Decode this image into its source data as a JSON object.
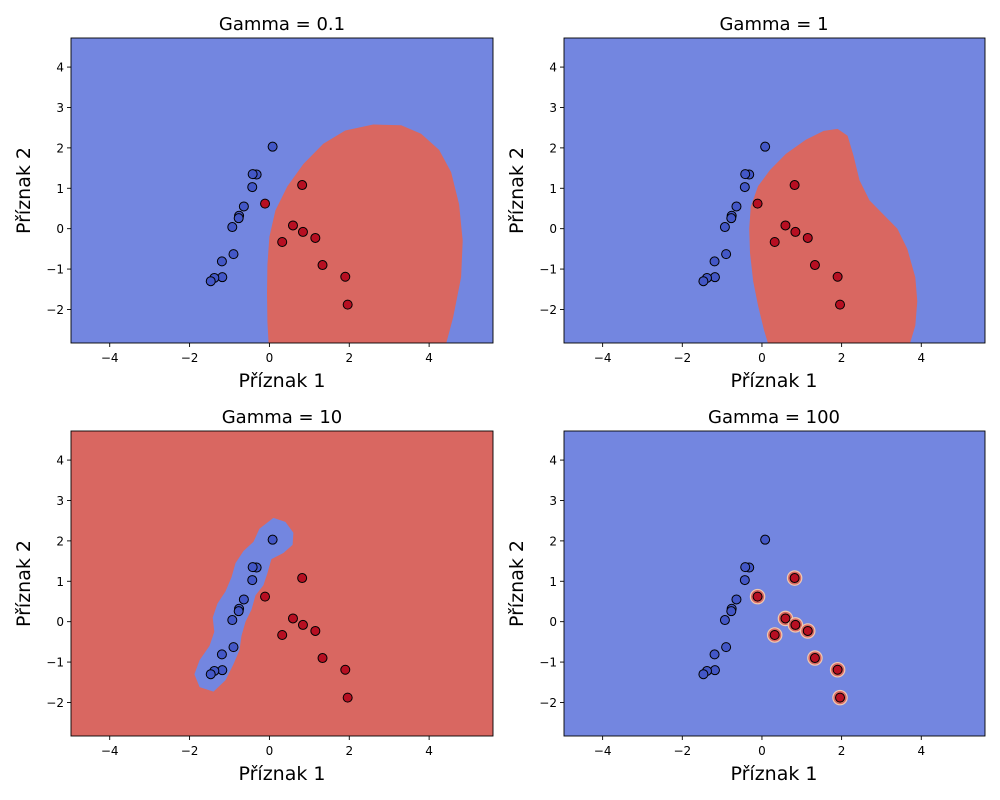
{
  "colors": {
    "class0_region": "#7386e0",
    "class1_region": "#d96761",
    "class0_point": "#4357c7",
    "class1_point": "#b70f22",
    "marker_edge": "#000000"
  },
  "chart_data": [
    {
      "type": "scatter",
      "title": "Gamma = 0.1",
      "xlabel": "Příznak 1",
      "ylabel": "Příznak 2",
      "xlim": [
        -4.97,
        5.6
      ],
      "ylim": [
        -2.83,
        4.72
      ],
      "xticks": [
        -4,
        -2,
        0,
        2,
        4
      ],
      "yticks": [
        -2,
        -1,
        0,
        1,
        2,
        3,
        4
      ],
      "xtick_labels": [
        "−4",
        "−2",
        "0",
        "2",
        "4"
      ],
      "ytick_labels": [
        "−2",
        "−1",
        "0",
        "1",
        "2",
        "3",
        "4"
      ],
      "gamma": 0.1,
      "background": "class0",
      "regions": [
        {
          "class": "class1",
          "path": [
            [
              -0.02,
              -2.83
            ],
            [
              -0.05,
              -2.3
            ],
            [
              -0.06,
              -1.6
            ],
            [
              -0.05,
              -0.9
            ],
            [
              0.0,
              -0.2
            ],
            [
              0.15,
              0.45
            ],
            [
              0.45,
              1.05
            ],
            [
              0.85,
              1.6
            ],
            [
              1.35,
              2.1
            ],
            [
              1.9,
              2.43
            ],
            [
              2.6,
              2.58
            ],
            [
              3.3,
              2.56
            ],
            [
              3.8,
              2.35
            ],
            [
              4.25,
              1.95
            ],
            [
              4.55,
              1.4
            ],
            [
              4.75,
              0.6
            ],
            [
              4.84,
              -0.3
            ],
            [
              4.8,
              -1.2
            ],
            [
              4.6,
              -2.2
            ],
            [
              4.43,
              -2.83
            ]
          ]
        }
      ],
      "series": [
        {
          "class": "class0",
          "points": [
            [
              0.08,
              2.03
            ],
            [
              -0.32,
              1.34
            ],
            [
              -0.42,
              1.35
            ],
            [
              -0.43,
              1.03
            ],
            [
              -0.64,
              0.55
            ],
            [
              -0.76,
              0.32
            ],
            [
              -0.77,
              0.26
            ],
            [
              -0.93,
              0.04
            ],
            [
              -0.9,
              -0.63
            ],
            [
              -1.19,
              -0.81
            ],
            [
              -1.18,
              -1.2
            ],
            [
              -1.38,
              -1.22
            ],
            [
              -1.47,
              -1.3
            ]
          ]
        },
        {
          "class": "class1",
          "points": [
            [
              0.82,
              1.08
            ],
            [
              -0.11,
              0.62
            ],
            [
              0.59,
              0.08
            ],
            [
              0.84,
              -0.08
            ],
            [
              1.15,
              -0.23
            ],
            [
              0.32,
              -0.33
            ],
            [
              1.33,
              -0.9
            ],
            [
              1.9,
              -1.19
            ],
            [
              1.96,
              -1.88
            ]
          ]
        }
      ]
    },
    {
      "type": "scatter",
      "title": "Gamma = 1",
      "xlabel": "Příznak 1",
      "ylabel": "Příznak 2",
      "xlim": [
        -4.97,
        5.6
      ],
      "ylim": [
        -2.83,
        4.72
      ],
      "xticks": [
        -4,
        -2,
        0,
        2,
        4
      ],
      "yticks": [
        -2,
        -1,
        0,
        1,
        2,
        3,
        4
      ],
      "xtick_labels": [
        "−4",
        "−2",
        "0",
        "2",
        "4"
      ],
      "ytick_labels": [
        "−2",
        "−1",
        "0",
        "1",
        "2",
        "3",
        "4"
      ],
      "gamma": 1,
      "background": "class0",
      "regions": [
        {
          "class": "class1",
          "path": [
            [
              0.15,
              -2.83
            ],
            [
              0.05,
              -2.5
            ],
            [
              -0.1,
              -1.9
            ],
            [
              -0.22,
              -1.3
            ],
            [
              -0.3,
              -0.6
            ],
            [
              -0.32,
              0.0
            ],
            [
              -0.28,
              0.55
            ],
            [
              -0.1,
              1.05
            ],
            [
              0.2,
              1.45
            ],
            [
              0.6,
              1.85
            ],
            [
              1.1,
              2.2
            ],
            [
              1.55,
              2.42
            ],
            [
              1.9,
              2.47
            ],
            [
              2.15,
              2.3
            ],
            [
              2.3,
              1.8
            ],
            [
              2.45,
              1.2
            ],
            [
              2.7,
              0.7
            ],
            [
              3.05,
              0.35
            ],
            [
              3.4,
              0.0
            ],
            [
              3.65,
              -0.5
            ],
            [
              3.85,
              -1.2
            ],
            [
              3.9,
              -1.8
            ],
            [
              3.85,
              -2.4
            ],
            [
              3.72,
              -2.83
            ]
          ]
        }
      ],
      "series": [
        {
          "class": "class0",
          "points": [
            [
              0.08,
              2.03
            ],
            [
              -0.32,
              1.34
            ],
            [
              -0.42,
              1.35
            ],
            [
              -0.43,
              1.03
            ],
            [
              -0.64,
              0.55
            ],
            [
              -0.76,
              0.32
            ],
            [
              -0.77,
              0.26
            ],
            [
              -0.93,
              0.04
            ],
            [
              -0.9,
              -0.63
            ],
            [
              -1.19,
              -0.81
            ],
            [
              -1.18,
              -1.2
            ],
            [
              -1.38,
              -1.22
            ],
            [
              -1.47,
              -1.3
            ]
          ]
        },
        {
          "class": "class1",
          "points": [
            [
              0.82,
              1.08
            ],
            [
              -0.11,
              0.62
            ],
            [
              0.59,
              0.08
            ],
            [
              0.84,
              -0.08
            ],
            [
              1.15,
              -0.23
            ],
            [
              0.32,
              -0.33
            ],
            [
              1.33,
              -0.9
            ],
            [
              1.9,
              -1.19
            ],
            [
              1.96,
              -1.88
            ]
          ]
        }
      ]
    },
    {
      "type": "scatter",
      "title": "Gamma = 10",
      "xlabel": "Příznak 1",
      "ylabel": "Příznak 2",
      "xlim": [
        -4.97,
        5.6
      ],
      "ylim": [
        -2.83,
        4.72
      ],
      "xticks": [
        -4,
        -2,
        0,
        2,
        4
      ],
      "yticks": [
        -2,
        -1,
        0,
        1,
        2,
        3,
        4
      ],
      "xtick_labels": [
        "−4",
        "−2",
        "0",
        "2",
        "4"
      ],
      "ytick_labels": [
        "−2",
        "−1",
        "0",
        "1",
        "2",
        "3",
        "4"
      ],
      "gamma": 10,
      "background": "class1",
      "regions": [
        {
          "class": "class0",
          "path": [
            [
              0.1,
              2.57
            ],
            [
              0.4,
              2.47
            ],
            [
              0.6,
              2.2
            ],
            [
              0.58,
              1.9
            ],
            [
              0.35,
              1.7
            ],
            [
              0.05,
              1.55
            ],
            [
              -0.05,
              1.2
            ],
            [
              -0.15,
              0.9
            ],
            [
              -0.35,
              0.65
            ],
            [
              -0.45,
              0.3
            ],
            [
              -0.6,
              0.0
            ],
            [
              -0.7,
              -0.35
            ],
            [
              -0.75,
              -0.7
            ],
            [
              -0.9,
              -1.05
            ],
            [
              -1.1,
              -1.45
            ],
            [
              -1.4,
              -1.73
            ],
            [
              -1.75,
              -1.62
            ],
            [
              -1.88,
              -1.3
            ],
            [
              -1.75,
              -0.95
            ],
            [
              -1.5,
              -0.6
            ],
            [
              -1.38,
              -0.25
            ],
            [
              -1.42,
              0.1
            ],
            [
              -1.3,
              0.45
            ],
            [
              -1.1,
              0.75
            ],
            [
              -0.95,
              1.1
            ],
            [
              -0.85,
              1.45
            ],
            [
              -0.65,
              1.75
            ],
            [
              -0.4,
              1.98
            ],
            [
              -0.25,
              2.3
            ]
          ]
        }
      ],
      "series": [
        {
          "class": "class0",
          "points": [
            [
              0.08,
              2.03
            ],
            [
              -0.32,
              1.34
            ],
            [
              -0.42,
              1.35
            ],
            [
              -0.43,
              1.03
            ],
            [
              -0.64,
              0.55
            ],
            [
              -0.76,
              0.32
            ],
            [
              -0.77,
              0.26
            ],
            [
              -0.93,
              0.04
            ],
            [
              -0.9,
              -0.63
            ],
            [
              -1.19,
              -0.81
            ],
            [
              -1.18,
              -1.2
            ],
            [
              -1.38,
              -1.22
            ],
            [
              -1.47,
              -1.3
            ]
          ]
        },
        {
          "class": "class1",
          "points": [
            [
              0.82,
              1.08
            ],
            [
              -0.11,
              0.62
            ],
            [
              0.59,
              0.08
            ],
            [
              0.84,
              -0.08
            ],
            [
              1.15,
              -0.23
            ],
            [
              0.32,
              -0.33
            ],
            [
              1.33,
              -0.9
            ],
            [
              1.9,
              -1.19
            ],
            [
              1.96,
              -1.88
            ]
          ]
        }
      ]
    },
    {
      "type": "scatter",
      "title": "Gamma = 100",
      "xlabel": "Příznak 1",
      "ylabel": "Příznak 2",
      "xlim": [
        -4.97,
        5.6
      ],
      "ylim": [
        -2.83,
        4.72
      ],
      "xticks": [
        -4,
        -2,
        0,
        2,
        4
      ],
      "yticks": [
        -2,
        -1,
        0,
        1,
        2,
        3,
        4
      ],
      "xtick_labels": [
        "−4",
        "−2",
        "0",
        "2",
        "4"
      ],
      "ytick_labels": [
        "−2",
        "−1",
        "0",
        "1",
        "2",
        "3",
        "4"
      ],
      "gamma": 100,
      "background": "class0",
      "regions": [],
      "halo_class": "class1",
      "halo_radius": 0.18,
      "series": [
        {
          "class": "class0",
          "points": [
            [
              0.08,
              2.03
            ],
            [
              -0.32,
              1.34
            ],
            [
              -0.42,
              1.35
            ],
            [
              -0.43,
              1.03
            ],
            [
              -0.64,
              0.55
            ],
            [
              -0.76,
              0.32
            ],
            [
              -0.77,
              0.26
            ],
            [
              -0.93,
              0.04
            ],
            [
              -0.9,
              -0.63
            ],
            [
              -1.19,
              -0.81
            ],
            [
              -1.18,
              -1.2
            ],
            [
              -1.38,
              -1.22
            ],
            [
              -1.47,
              -1.3
            ]
          ]
        },
        {
          "class": "class1",
          "points": [
            [
              0.82,
              1.08
            ],
            [
              -0.11,
              0.62
            ],
            [
              0.59,
              0.08
            ],
            [
              0.84,
              -0.08
            ],
            [
              1.15,
              -0.23
            ],
            [
              0.32,
              -0.33
            ],
            [
              1.33,
              -0.9
            ],
            [
              1.9,
              -1.19
            ],
            [
              1.96,
              -1.88
            ]
          ]
        }
      ]
    }
  ]
}
